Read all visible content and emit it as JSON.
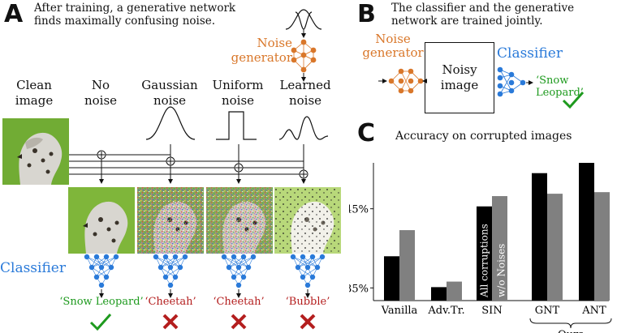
{
  "panel_a": {
    "letter": "A",
    "caption_line1": "After training, a generative network",
    "caption_line2": "finds maximally confusing noise.",
    "noise_generator_line1": "Noise",
    "noise_generator_line2": "generator",
    "columns": [
      {
        "line1": "Clean",
        "line2": "image"
      },
      {
        "line1": "No",
        "line2": "noise"
      },
      {
        "line1": "Gaussian",
        "line2": "noise"
      },
      {
        "line1": "Uniform",
        "line2": "noise"
      },
      {
        "line1": "Learned",
        "line2": "noise"
      }
    ],
    "classifier_label": "Classifier",
    "predictions": [
      {
        "label": "‘Snow Leopard’",
        "correct": true
      },
      {
        "label": "‘Cheetah’",
        "correct": false
      },
      {
        "label": "‘Cheetah’",
        "correct": false
      },
      {
        "label": "‘Bubble’",
        "correct": false
      }
    ]
  },
  "panel_b": {
    "letter": "B",
    "caption_line1": "The classifier and the generative",
    "caption_line2": "network are trained jointly.",
    "noise_line1": "Noise",
    "noise_line2": "generator",
    "box_line1": "Noisy",
    "box_line2": "image",
    "classifier_label": "Classifier",
    "prediction": "‘Snow Leopard’"
  },
  "colors": {
    "orange": "#d9772a",
    "blue": "#2a7ad9",
    "green": "#1e9a1e",
    "red": "#b41e1e"
  },
  "chart_data": {
    "type": "bar",
    "letter": "C",
    "title": "Accuracy on corrupted images",
    "categories": [
      "Vanilla",
      "Adv.Tr.",
      "SIN",
      "GNT",
      "ANT"
    ],
    "series": [
      {
        "values": [
          39.0,
          35.1,
          45.3,
          49.5,
          50.8
        ],
        "color": "#000000"
      },
      {
        "values": [
          42.3,
          35.8,
          46.6,
          46.9,
          47.1
        ],
        "color": "#808080"
      }
    ],
    "yticks": [
      35,
      45
    ],
    "ytick_labels": [
      "35%",
      "45%"
    ],
    "ylim": [
      33.4,
      50.8
    ],
    "group_label": "Ours",
    "annotation_line1": "All corruptions",
    "annotation_line2": "w/o Noises"
  }
}
